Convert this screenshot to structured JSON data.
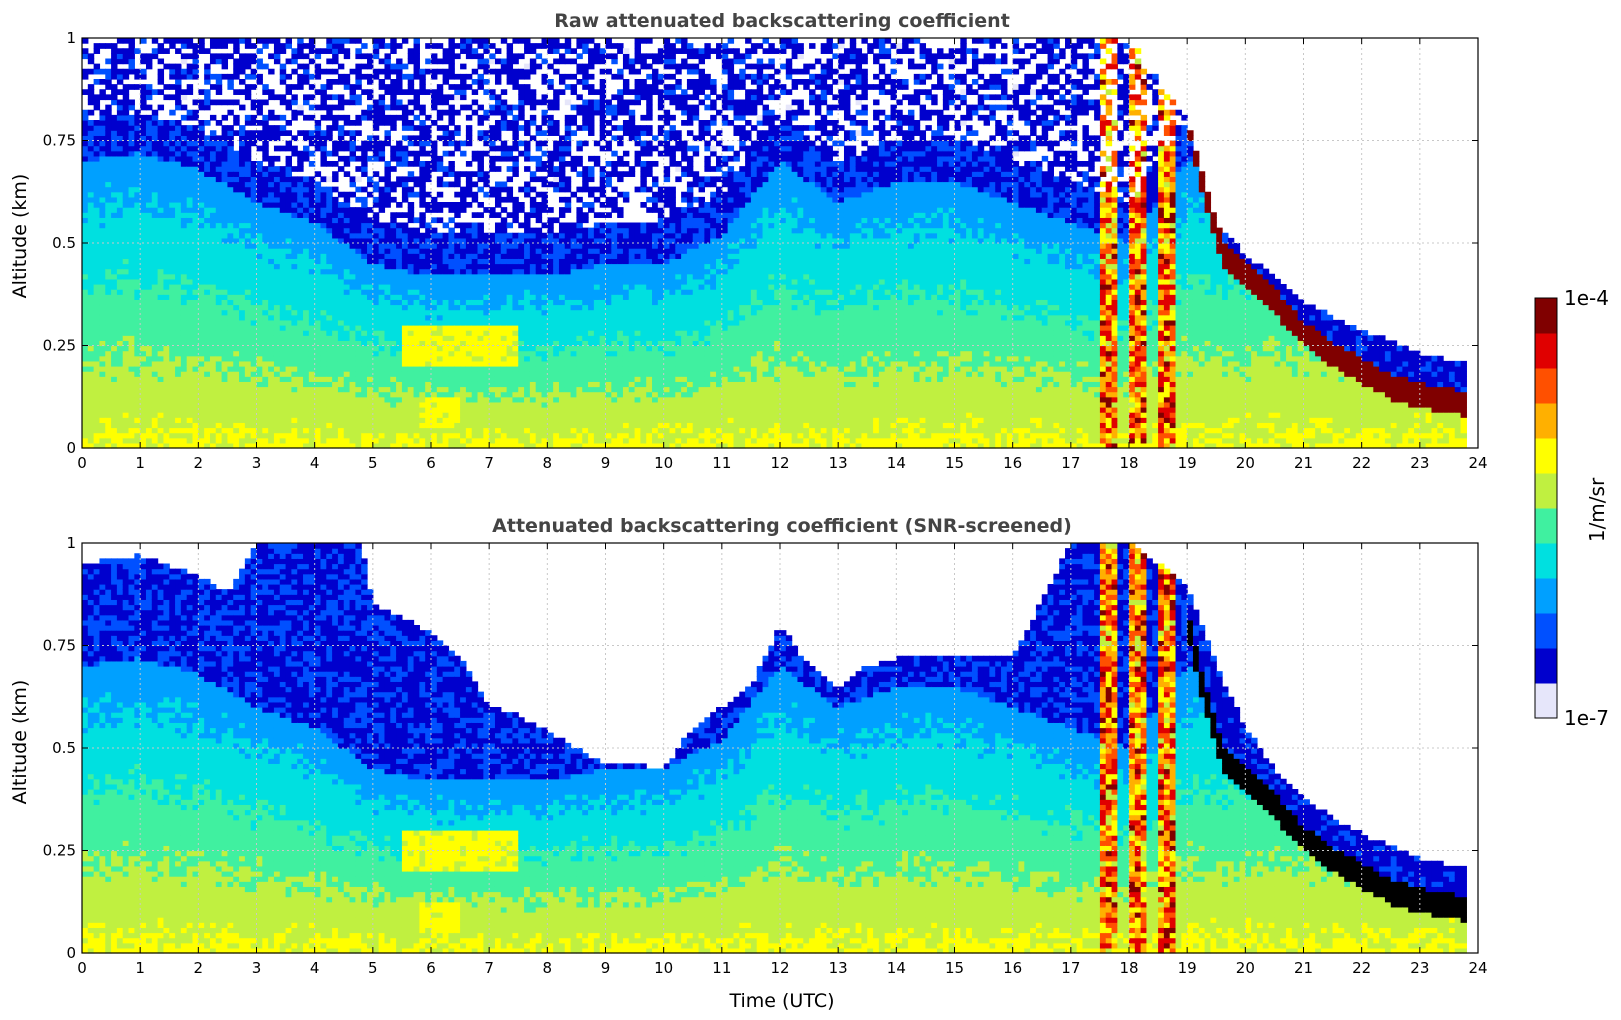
{
  "chart_data": [
    {
      "type": "heatmap",
      "title": "Raw attenuated backscattering coefficient",
      "ylabel": "Altitude (km)",
      "xlabel": "",
      "xlim": [
        0,
        24
      ],
      "ylim": [
        0,
        1
      ],
      "x_ticks": [
        "0",
        "1",
        "2",
        "3",
        "4",
        "5",
        "6",
        "7",
        "8",
        "9",
        "10",
        "11",
        "12",
        "13",
        "14",
        "15",
        "16",
        "17",
        "18",
        "19",
        "20",
        "21",
        "22",
        "23",
        "24"
      ],
      "y_ticks": [
        "0",
        "0.25",
        "0.5",
        "0.75",
        "1"
      ],
      "grid": true,
      "screened": false,
      "top_boundary_km": [
        [
          0,
          1.0
        ],
        [
          1,
          1.0
        ],
        [
          2,
          1.0
        ],
        [
          3,
          1.0
        ],
        [
          4,
          1.0
        ],
        [
          5,
          1.0
        ],
        [
          6,
          1.0
        ],
        [
          7,
          1.0
        ],
        [
          8,
          1.0
        ],
        [
          9,
          1.0
        ],
        [
          10,
          1.0
        ],
        [
          11,
          1.0
        ],
        [
          12,
          1.0
        ],
        [
          13,
          1.0
        ],
        [
          14,
          1.0
        ],
        [
          15,
          1.0
        ],
        [
          16,
          1.0
        ],
        [
          17,
          1.0
        ],
        [
          18,
          1.0
        ],
        [
          19,
          0.8
        ],
        [
          19.5,
          0.55
        ],
        [
          20,
          0.47
        ],
        [
          20.5,
          0.42
        ],
        [
          21,
          0.36
        ],
        [
          21.5,
          0.32
        ],
        [
          22,
          0.29
        ],
        [
          22.5,
          0.26
        ],
        [
          23,
          0.23
        ],
        [
          23.7,
          0.21
        ]
      ],
      "cloud_base_km": [
        [
          19,
          0.78
        ],
        [
          19.3,
          0.6
        ],
        [
          19.6,
          0.45
        ],
        [
          20,
          0.39
        ],
        [
          20.5,
          0.33
        ],
        [
          21,
          0.25
        ],
        [
          21.5,
          0.2
        ],
        [
          22,
          0.16
        ],
        [
          22.5,
          0.12
        ],
        [
          23,
          0.1
        ],
        [
          23.7,
          0.08
        ]
      ],
      "aerosol_top_km": [
        [
          0,
          0.7
        ],
        [
          1,
          0.72
        ],
        [
          2,
          0.68
        ],
        [
          3,
          0.6
        ],
        [
          4,
          0.55
        ],
        [
          5,
          0.45
        ],
        [
          6,
          0.42
        ],
        [
          7,
          0.42
        ],
        [
          8,
          0.42
        ],
        [
          9,
          0.45
        ],
        [
          10,
          0.45
        ],
        [
          11,
          0.52
        ],
        [
          12,
          0.7
        ],
        [
          13,
          0.6
        ],
        [
          14,
          0.65
        ],
        [
          15,
          0.65
        ],
        [
          16,
          0.6
        ],
        [
          17,
          0.55
        ],
        [
          18,
          0.5
        ],
        [
          19,
          0.7
        ]
      ],
      "enhanced_layers": [
        {
          "t_start": 5.5,
          "t_end": 7.5,
          "alt_top": 0.3,
          "alt_bottom": 0.2
        },
        {
          "t_start": 5.8,
          "t_end": 6.5,
          "alt_top": 0.12,
          "alt_bottom": 0.05
        },
        {
          "t_start": 17.5,
          "t_end": 17.8,
          "alt_top": 1.0,
          "alt_bottom": 0.0
        },
        {
          "t_start": 18.0,
          "t_end": 18.3,
          "alt_top": 1.0,
          "alt_bottom": 0.0
        },
        {
          "t_start": 18.5,
          "t_end": 18.8,
          "alt_top": 1.0,
          "alt_bottom": 0.0
        }
      ]
    },
    {
      "type": "heatmap",
      "title": "Attenuated backscattering coefficient (SNR-screened)",
      "ylabel": "Altitude (km)",
      "xlabel": "Time (UTC)",
      "xlim": [
        0,
        24
      ],
      "ylim": [
        0,
        1
      ],
      "x_ticks": [
        "0",
        "1",
        "2",
        "3",
        "4",
        "5",
        "6",
        "7",
        "8",
        "9",
        "10",
        "11",
        "12",
        "13",
        "14",
        "15",
        "16",
        "17",
        "18",
        "19",
        "20",
        "21",
        "22",
        "23",
        "24"
      ],
      "y_ticks": [
        "0",
        "0.25",
        "0.5",
        "0.75",
        "1"
      ],
      "grid": true,
      "screened": true,
      "valid_top_km": [
        [
          0,
          0.95
        ],
        [
          1,
          0.97
        ],
        [
          2,
          0.92
        ],
        [
          2.5,
          0.88
        ],
        [
          3,
          1.0
        ],
        [
          4,
          1.0
        ],
        [
          4.8,
          1.0
        ],
        [
          5,
          0.85
        ],
        [
          5.5,
          0.82
        ],
        [
          6,
          0.78
        ],
        [
          6.5,
          0.72
        ],
        [
          7,
          0.6
        ],
        [
          7.5,
          0.58
        ],
        [
          8,
          0.54
        ],
        [
          8.5,
          0.5
        ],
        [
          9,
          0.46
        ],
        [
          9.5,
          0.46
        ],
        [
          10,
          0.45
        ],
        [
          10.5,
          0.55
        ],
        [
          11,
          0.6
        ],
        [
          11.5,
          0.65
        ],
        [
          12,
          0.8
        ],
        [
          12.5,
          0.7
        ],
        [
          13,
          0.65
        ],
        [
          13.5,
          0.7
        ],
        [
          14,
          0.72
        ],
        [
          15,
          0.73
        ],
        [
          16,
          0.72
        ],
        [
          17,
          1.0
        ],
        [
          18,
          1.0
        ],
        [
          19,
          0.9
        ],
        [
          19.5,
          0.7
        ],
        [
          20,
          0.55
        ],
        [
          20.5,
          0.45
        ],
        [
          21,
          0.38
        ],
        [
          21.5,
          0.33
        ],
        [
          22,
          0.29
        ],
        [
          22.5,
          0.26
        ],
        [
          23,
          0.23
        ],
        [
          23.7,
          0.21
        ]
      ]
    }
  ],
  "colorbar": {
    "label": "1/m/sr",
    "max_label": "1e-4",
    "min_label": "1e-7",
    "colors": [
      "#e6e6fa",
      "#0000cd",
      "#0050ff",
      "#00a0ff",
      "#00e0e0",
      "#40f0a0",
      "#c0f040",
      "#ffff00",
      "#ffb000",
      "#ff5000",
      "#e00000",
      "#800000"
    ]
  }
}
